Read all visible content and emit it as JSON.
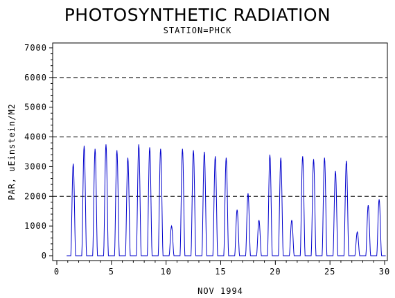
{
  "chart_data": {
    "type": "line",
    "title": "PHOTOSYNTHETIC RADIATION",
    "subtitle": "STATION=PHCK",
    "xlabel": "NOV 1994",
    "ylabel": "PAR, uEinstein/M2",
    "xlim": [
      0,
      30
    ],
    "ylim": [
      0,
      7000
    ],
    "x_ticks": [
      0,
      5,
      10,
      15,
      20,
      25,
      30
    ],
    "y_ticks": [
      0,
      1000,
      2000,
      3000,
      4000,
      5000,
      6000,
      7000
    ],
    "reference_lines": [
      2000,
      4000,
      6000
    ],
    "grid": false,
    "legend": "none",
    "line_color": "#0000cc",
    "series": [
      {
        "daily_peaks": [
          {
            "day": 1,
            "peak": 3100
          },
          {
            "day": 2,
            "peak": 3700
          },
          {
            "day": 3,
            "peak": 3600
          },
          {
            "day": 4,
            "peak": 3750
          },
          {
            "day": 5,
            "peak": 3550
          },
          {
            "day": 6,
            "peak": 3300
          },
          {
            "day": 7,
            "peak": 3750
          },
          {
            "day": 8,
            "peak": 3650
          },
          {
            "day": 9,
            "peak": 3600
          },
          {
            "day": 10,
            "peak": 1000
          },
          {
            "day": 11,
            "peak": 3600
          },
          {
            "day": 12,
            "peak": 3550
          },
          {
            "day": 13,
            "peak": 3500
          },
          {
            "day": 14,
            "peak": 3350
          },
          {
            "day": 15,
            "peak": 3300
          },
          {
            "day": 16,
            "peak": 1550
          },
          {
            "day": 17,
            "peak": 2100
          },
          {
            "day": 18,
            "peak": 1200
          },
          {
            "day": 19,
            "peak": 3400
          },
          {
            "day": 20,
            "peak": 3300
          },
          {
            "day": 21,
            "peak": 1200
          },
          {
            "day": 22,
            "peak": 3350
          },
          {
            "day": 23,
            "peak": 3250
          },
          {
            "day": 24,
            "peak": 3300
          },
          {
            "day": 25,
            "peak": 2850
          },
          {
            "day": 26,
            "peak": 3200
          },
          {
            "day": 27,
            "peak": 800
          },
          {
            "day": 28,
            "peak": 1700
          },
          {
            "day": 29,
            "peak": 1900
          }
        ]
      }
    ]
  }
}
